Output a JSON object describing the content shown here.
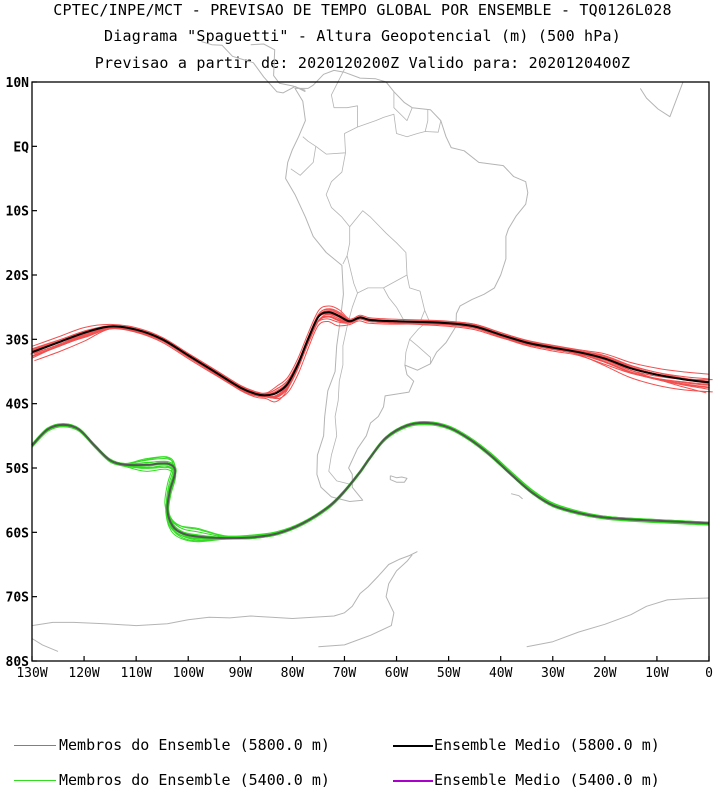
{
  "titles": {
    "line1": "CPTEC/INPE/MCT - PREVISAO DE TEMPO GLOBAL POR ENSEMBLE - TQ0126L028",
    "line2": "Diagrama \"Spaguetti\" - Altura Geopotencial (m) (500 hPa)",
    "line3": "Previsao a partir de: 2020120200Z  Valido para: 2020120400Z"
  },
  "axes": {
    "lat_labels": [
      "10N",
      "EQ",
      "10S",
      "20S",
      "30S",
      "40S",
      "50S",
      "60S",
      "70S",
      "80S"
    ],
    "lon_labels": [
      "130W",
      "120W",
      "110W",
      "100W",
      "90W",
      "80W",
      "70W",
      "60W",
      "50W",
      "40W",
      "30W",
      "20W",
      "10W",
      "0"
    ],
    "lat_range": [
      10,
      -80
    ],
    "lon_range": [
      -130,
      0
    ]
  },
  "colors": {
    "members_5800": "#f05050",
    "mean_5800": "#000000",
    "members_5400": "#33dd22",
    "mean_5400": "#aa00cc",
    "coast": "#b4b4b4"
  },
  "legend": {
    "members_5800": "Membros do Ensemble (5800.0 m)",
    "mean_5800": "Ensemble Medio (5800.0 m)",
    "members_5400": "Membros do Ensemble (5400.0 m)",
    "mean_5400": "Ensemble Medio (5400.0 m)"
  },
  "chart_data": {
    "type": "line",
    "series": [
      {
        "name": "Ensemble Medio (5800.0 m)",
        "x": [
          -130,
          -125,
          -120,
          -115,
          -110,
          -105,
          -100,
          -95,
          -90,
          -87,
          -85,
          -83,
          -81,
          -79,
          -77,
          -75,
          -73,
          -71,
          -69,
          -67,
          -65,
          -60,
          -55,
          -50,
          -45,
          -40,
          -35,
          -30,
          -25,
          -20,
          -15,
          -10,
          -5,
          0
        ],
        "y": [
          -32,
          -30.5,
          -29,
          -28,
          -28.5,
          -30,
          -32.5,
          -35,
          -37.5,
          -38.5,
          -38.7,
          -38.3,
          -37,
          -34,
          -30,
          -26.5,
          -25.8,
          -26.4,
          -27.2,
          -26.6,
          -27,
          -27.2,
          -27.3,
          -27.5,
          -28,
          -29.3,
          -30.5,
          -31.3,
          -32,
          -33,
          -34.5,
          -35.5,
          -36.2,
          -36.7
        ]
      },
      {
        "name": "Ensemble Medio (5400.0 m)",
        "x": [
          -130,
          -127,
          -124,
          -121,
          -118,
          -115,
          -112,
          -108,
          -104,
          -102.5,
          -103.5,
          -104,
          -103,
          -101,
          -98,
          -93,
          -88,
          -83,
          -78,
          -73,
          -70,
          -67,
          -65,
          -62,
          -58,
          -54,
          -50,
          -46,
          -42,
          -38,
          -34,
          -30,
          -25,
          -20,
          -15,
          -10,
          -5,
          0
        ],
        "y": [
          -46.5,
          -44,
          -43.3,
          -44,
          -46.5,
          -48.8,
          -49.5,
          -49.5,
          -49.3,
          -50.5,
          -53.5,
          -56.5,
          -59,
          -60.2,
          -60.7,
          -60.9,
          -60.8,
          -60.2,
          -58.6,
          -56,
          -53.6,
          -50.6,
          -48.3,
          -45.3,
          -43.4,
          -43,
          -43.7,
          -45.5,
          -48,
          -51,
          -53.8,
          -55.8,
          -57,
          -57.7,
          -58,
          -58.2,
          -58.4,
          -58.6
        ]
      }
    ],
    "ensemble_members": {
      "count_5800": 15,
      "count_5400": 15
    },
    "title": "Diagrama \"Spaguetti\" - Altura Geopotencial (m) (500 hPa)",
    "xlim": [
      -130,
      0
    ],
    "ylim": [
      -80,
      10
    ],
    "grid": false,
    "legend_position": "bottom"
  }
}
